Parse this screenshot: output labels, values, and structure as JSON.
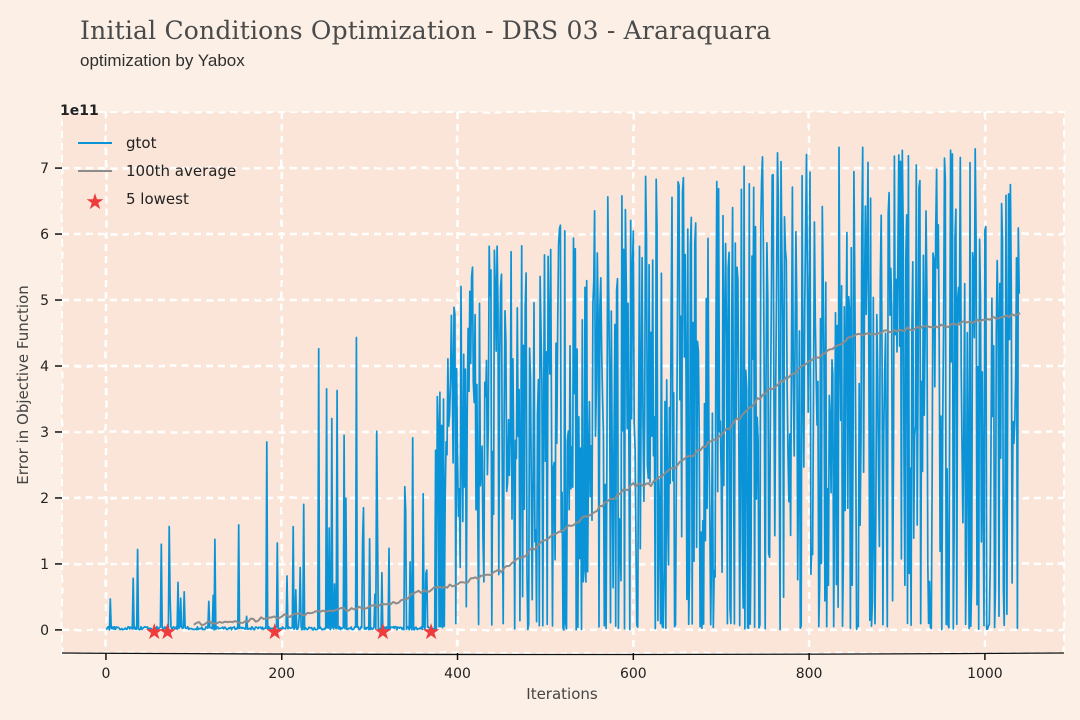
{
  "header": {
    "title": "Initial Conditions Optimization - DRS 03 - Araraquara",
    "subtitle": "optimization by Yabox"
  },
  "chart_data": {
    "type": "line",
    "xlabel": "Iterations",
    "ylabel": "Error in Objective Function",
    "scale_label": "1e11",
    "xlim": [
      -50,
      1090
    ],
    "ylim": [
      -0.35,
      7.85
    ],
    "xticks": [
      0,
      200,
      400,
      600,
      800,
      1000
    ],
    "yticks": [
      0,
      1,
      2,
      3,
      4,
      5,
      6,
      7
    ],
    "grid": true,
    "legend_position": "top-left",
    "colors": {
      "gtot": "#0a93d6",
      "average": "#8c8c8c",
      "lowest": "#ee3b3b",
      "grid": "#ffffff",
      "plot_bg": "#fae5d8"
    },
    "series": [
      {
        "name": "gtot",
        "kind": "spiky-line",
        "n_points": 1040,
        "peak_envelope": {
          "x": [
            0,
            20,
            40,
            60,
            80,
            100,
            150,
            200,
            250,
            300,
            350,
            380,
            400,
            450,
            500,
            550,
            600,
            700,
            800,
            900,
            1000,
            1040
          ],
          "y": [
            1.5,
            1.5,
            1.4,
            1.2,
            2.2,
            1.0,
            2.4,
            3.1,
            4.5,
            4.5,
            4.1,
            4.4,
            5.3,
            6.1,
            5.9,
            6.7,
            7.0,
            7.0,
            7.4,
            7.3,
            7.3,
            7.2
          ]
        }
      },
      {
        "name": "100th average",
        "x": [
          100,
          150,
          200,
          250,
          300,
          330,
          350,
          400,
          450,
          500,
          550,
          600,
          620,
          650,
          700,
          750,
          800,
          850,
          900,
          950,
          1000,
          1040
        ],
        "y": [
          0.1,
          0.12,
          0.2,
          0.28,
          0.35,
          0.4,
          0.55,
          0.7,
          0.9,
          1.35,
          1.75,
          2.2,
          2.2,
          2.5,
          2.95,
          3.6,
          4.05,
          4.45,
          4.55,
          4.6,
          4.7,
          4.8
        ]
      },
      {
        "name": "5 lowest",
        "kind": "scatter",
        "x": [
          55,
          70,
          192,
          315,
          370
        ],
        "y": [
          0.0,
          0.0,
          0.0,
          0.0,
          0.0
        ]
      }
    ]
  }
}
